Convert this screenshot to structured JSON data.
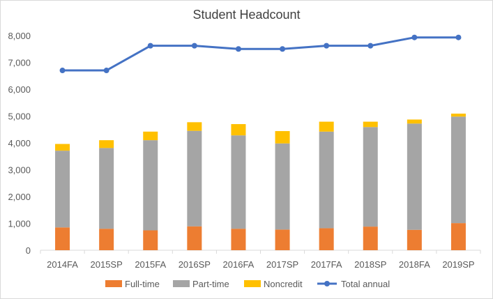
{
  "chart_data": {
    "type": "bar",
    "title": "Student Headcount",
    "categories": [
      "2014FA",
      "2015SP",
      "2015FA",
      "2016SP",
      "2016FA",
      "2017SP",
      "2017FA",
      "2018SP",
      "2018FA",
      "2019SP"
    ],
    "series": [
      {
        "name": "Full-time",
        "kind": "stacked-bar",
        "color": "#ED7D31",
        "values": [
          850,
          800,
          740,
          890,
          800,
          770,
          820,
          880,
          760,
          1010
        ]
      },
      {
        "name": "Part-time",
        "kind": "stacked-bar",
        "color": "#A5A5A5",
        "values": [
          2860,
          3010,
          3360,
          3560,
          3480,
          3210,
          3600,
          3710,
          3960,
          3970
        ]
      },
      {
        "name": "Noncredit",
        "kind": "stacked-bar",
        "color": "#FFC000",
        "values": [
          250,
          290,
          320,
          320,
          420,
          460,
          370,
          200,
          150,
          110
        ]
      },
      {
        "name": "Total annual",
        "kind": "line",
        "color": "#4472C4",
        "values": [
          6700,
          6700,
          7620,
          7620,
          7500,
          7500,
          7620,
          7620,
          7930,
          7930
        ]
      }
    ],
    "yticks": [
      "0",
      "1,000",
      "2,000",
      "3,000",
      "4,000",
      "5,000",
      "6,000",
      "7,000",
      "8,000"
    ],
    "ylim": [
      0,
      8000
    ],
    "legend_position": "bottom",
    "gridlines": false
  }
}
